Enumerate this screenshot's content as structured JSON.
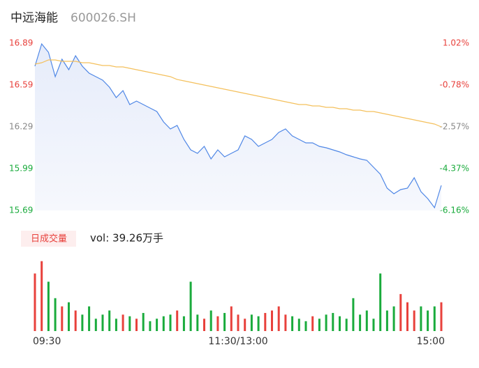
{
  "chart_data": [
    {
      "type": "line",
      "title": "中远海能",
      "subtitle": "600026.SH",
      "x": [
        0,
        4,
        8,
        12,
        16,
        20,
        24,
        28,
        32,
        36,
        40,
        44,
        48,
        52,
        56,
        60,
        64,
        68,
        72,
        76,
        80,
        84,
        88,
        92,
        96,
        100,
        104,
        108,
        112,
        116,
        120,
        124,
        128,
        132,
        136,
        140,
        144,
        148,
        152,
        156,
        160,
        164,
        168,
        172,
        176,
        180,
        184,
        188,
        192,
        196,
        200,
        204,
        208,
        212,
        216,
        220,
        224,
        228,
        232,
        236,
        240
      ],
      "xlim": [
        0,
        240
      ],
      "xticks": [
        {
          "value": 0,
          "label": "09:30"
        },
        {
          "value": 120,
          "label": "11:30/13:00"
        },
        {
          "value": 240,
          "label": "15:00"
        }
      ],
      "ylim": [
        15.69,
        16.89
      ],
      "yticks": [
        16.89,
        16.59,
        16.29,
        15.99,
        15.69
      ],
      "y2lim": [
        -6.16,
        1.02
      ],
      "y2ticks": [
        {
          "value": 1.02,
          "label": "1.02%"
        },
        {
          "value": -0.78,
          "label": "-0.78%"
        },
        {
          "value": -2.57,
          "label": "-2.57%"
        },
        {
          "value": -4.37,
          "label": "-4.37%"
        },
        {
          "value": -6.16,
          "label": "-6.16%"
        }
      ],
      "series": [
        {
          "color": "#4f87e6",
          "fill": true,
          "values": [
            16.725,
            16.885,
            16.825,
            16.65,
            16.775,
            16.7,
            16.8,
            16.725,
            16.675,
            16.65,
            16.625,
            16.575,
            16.5,
            16.55,
            16.45,
            16.475,
            16.45,
            16.425,
            16.4,
            16.325,
            16.275,
            16.3,
            16.2,
            16.125,
            16.1,
            16.15,
            16.06,
            16.125,
            16.075,
            16.1,
            16.125,
            16.225,
            16.2,
            16.15,
            16.175,
            16.2,
            16.25,
            16.275,
            16.225,
            16.2,
            16.175,
            16.175,
            16.15,
            16.14,
            16.125,
            16.11,
            16.09,
            16.075,
            16.06,
            16.05,
            16.0,
            15.95,
            15.85,
            15.81,
            15.84,
            15.85,
            15.925,
            15.825,
            15.775,
            15.71,
            15.87
          ]
        },
        {
          "color": "#f4c05c",
          "fill": false,
          "values": [
            16.74,
            16.75,
            16.77,
            16.77,
            16.76,
            16.76,
            16.76,
            16.75,
            16.75,
            16.74,
            16.73,
            16.73,
            16.72,
            16.72,
            16.71,
            16.7,
            16.69,
            16.68,
            16.67,
            16.66,
            16.65,
            16.63,
            16.62,
            16.61,
            16.6,
            16.59,
            16.58,
            16.57,
            16.56,
            16.55,
            16.54,
            16.53,
            16.52,
            16.51,
            16.5,
            16.49,
            16.48,
            16.47,
            16.46,
            16.45,
            16.45,
            16.44,
            16.44,
            16.43,
            16.43,
            16.42,
            16.42,
            16.41,
            16.41,
            16.4,
            16.4,
            16.39,
            16.38,
            16.37,
            16.36,
            16.35,
            16.34,
            16.33,
            16.32,
            16.31,
            16.29
          ]
        }
      ]
    },
    {
      "type": "bar",
      "button": "日成交量",
      "title": "vol: 39.26万手",
      "ylim": [
        0,
        100
      ],
      "up_color": "#e8413c",
      "down_color": "#1aab3c",
      "values": [
        70,
        85,
        60,
        40,
        30,
        35,
        25,
        20,
        30,
        15,
        20,
        25,
        15,
        20,
        18,
        15,
        22,
        12,
        15,
        18,
        20,
        25,
        18,
        60,
        20,
        15,
        25,
        18,
        22,
        30,
        20,
        15,
        20,
        18,
        22,
        25,
        30,
        20,
        18,
        15,
        12,
        18,
        15,
        20,
        22,
        18,
        15,
        40,
        20,
        25,
        15,
        70,
        25,
        30,
        45,
        35,
        25,
        30,
        25,
        30,
        35
      ]
    }
  ]
}
